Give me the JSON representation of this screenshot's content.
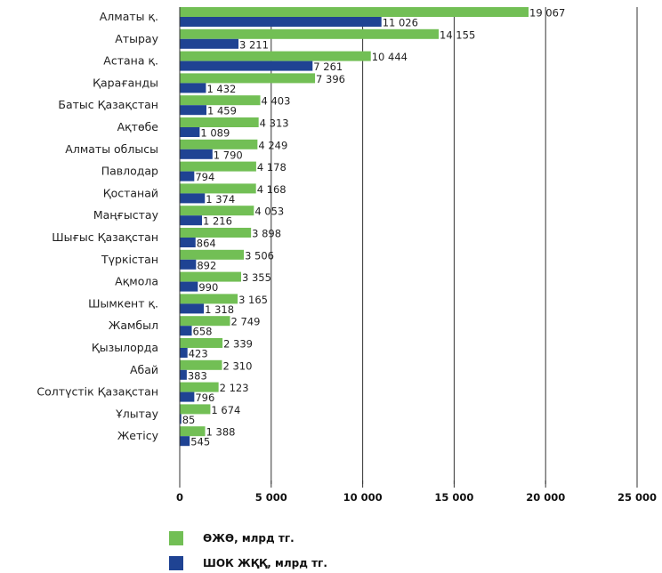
{
  "chart_data": {
    "type": "bar",
    "orientation": "horizontal",
    "categories": [
      "Алматы қ.",
      "Атырау",
      "Астана қ.",
      "Қарағанды",
      "Батыс Қазақстан",
      "Ақтөбе",
      "Алматы облысы",
      "Павлодар",
      "Қостанай",
      "Маңғыстау",
      "Шығыс Қазақстан",
      "Түркістан",
      "Ақмола",
      "Шымкент қ.",
      "Жамбыл",
      "Қызылорда",
      "Абай",
      "Солтүстік Қазақстан",
      "Ұлытау",
      "Жетісу"
    ],
    "series": [
      {
        "name": "ӨЖӨ, млрд тг.",
        "color": "#72bf55",
        "values": [
          19067,
          14155,
          10444,
          7396,
          4403,
          4313,
          4249,
          4178,
          4168,
          4053,
          3898,
          3506,
          3355,
          3165,
          2749,
          2339,
          2310,
          2123,
          1674,
          1388
        ],
        "labels": [
          "19 067",
          "14 155",
          "10 444",
          "7 396",
          "4 403",
          "4 313",
          "4 249",
          "4 178",
          "4 168",
          "4 053",
          "3 898",
          "3 506",
          "3 355",
          "3 165",
          "2 749",
          "2 339",
          "2 310",
          "2 123",
          "1 674",
          "1 388"
        ]
      },
      {
        "name": "ШОК ЖҚҚ, млрд тг.",
        "color": "#1f4393",
        "values": [
          11026,
          3211,
          7261,
          1432,
          1459,
          1089,
          1790,
          794,
          1374,
          1216,
          864,
          892,
          990,
          1318,
          658,
          423,
          383,
          796,
          85,
          545
        ],
        "labels": [
          "11 026",
          "3 211",
          "7 261",
          "1 432",
          "1 459",
          "1 089",
          "1 790",
          "794",
          "1 374",
          "1 216",
          "864",
          "892",
          "990",
          "1 318",
          "658",
          "423",
          "383",
          "796",
          "85",
          "545"
        ]
      }
    ],
    "xlim": [
      0,
      25000
    ],
    "xticks": [
      0,
      5000,
      10000,
      15000,
      20000,
      25000
    ],
    "xtick_labels": [
      "0",
      "5 000",
      "10 000",
      "15 000",
      "20 000",
      "25 000"
    ],
    "grid": "vertical",
    "legend_position": "bottom"
  }
}
